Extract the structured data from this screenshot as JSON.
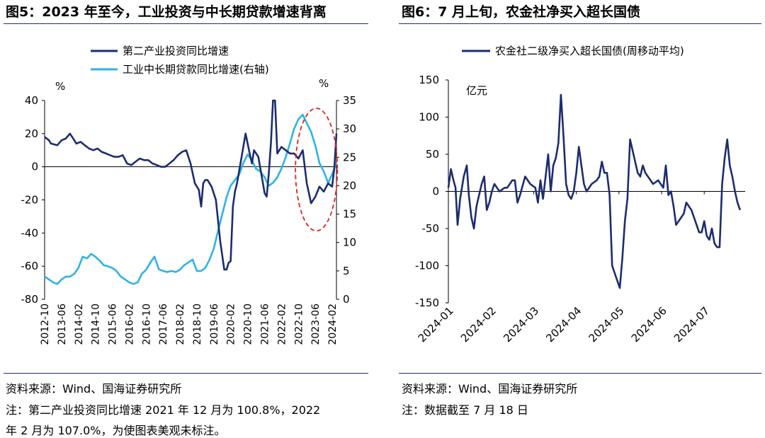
{
  "figure1": {
    "title": "图5：2023 年至今，工业投资与中长期贷款增速背离",
    "source": "资料来源：Wind、国海证券研究所",
    "note_line1": "注：第二产业投资同比增速 2021 年 12 月为 100.8%，2022",
    "note_line2": "年 2 月为 107.0%，为使图表美观未标注。"
  },
  "figure2": {
    "title": "图6：7 月上旬，农金社净买入超长国债",
    "source": "资料来源：Wind、国海证券研究所",
    "note_line1": "注：数据截至 7 月 18 日"
  },
  "colors": {
    "dark": "#1c2d6e",
    "light": "#2db3e8",
    "ellipse": "#e02020"
  },
  "chart_data": [
    {
      "type": "line",
      "unit_left": "%",
      "unit_right": "%",
      "ylim": [
        -80,
        40
      ],
      "y2lim": [
        0,
        35
      ],
      "yticks": [
        "40",
        "20",
        "0",
        "-20",
        "-40",
        "-60",
        "-80"
      ],
      "y2ticks": [
        "35",
        "30",
        "25",
        "20",
        "15",
        "10",
        "5",
        "0"
      ],
      "xlim": [
        2012.75,
        2024.25
      ],
      "xtick_labels": [
        "2012-10",
        "2013-06",
        "2014-02",
        "2014-10",
        "2015-06",
        "2016-02",
        "2016-10",
        "2017-06",
        "2018-02",
        "2018-10",
        "2019-06",
        "2020-02",
        "2020-10",
        "2021-06",
        "2022-02",
        "2022-10",
        "2023-06",
        "2024-02"
      ],
      "annotation": "dashed red ellipse highlighting 2022-10 to 2024-02",
      "series": [
        {
          "name": "第二产业投资同比增速",
          "axis": "left",
          "x": [
            2012.75,
            2012.92,
            2013.0,
            2013.25,
            2013.42,
            2013.58,
            2013.75,
            2013.92,
            2014.0,
            2014.17,
            2014.33,
            2014.5,
            2014.67,
            2014.83,
            2015.0,
            2015.17,
            2015.33,
            2015.5,
            2015.67,
            2015.83,
            2016.0,
            2016.17,
            2016.33,
            2016.5,
            2016.67,
            2016.83,
            2017.0,
            2017.17,
            2017.33,
            2017.5,
            2017.67,
            2017.83,
            2018.0,
            2018.17,
            2018.33,
            2018.5,
            2018.67,
            2018.83,
            2018.92,
            2019.0,
            2019.08,
            2019.17,
            2019.33,
            2019.5,
            2019.67,
            2019.83,
            2019.92,
            2020.0,
            2020.08,
            2020.17,
            2020.25,
            2020.33,
            2020.5,
            2020.67,
            2020.83,
            2020.92,
            2021.0,
            2021.17,
            2021.33,
            2021.42,
            2021.5,
            2021.58,
            2021.67,
            2021.75,
            2021.83,
            2021.92,
            2022.08,
            2022.25,
            2022.42,
            2022.58,
            2022.75,
            2022.92,
            2023.08,
            2023.25,
            2023.42,
            2023.58,
            2023.75,
            2023.92,
            2024.08,
            2024.17,
            2024.25
          ],
          "values": [
            18,
            16,
            14,
            13,
            16,
            17,
            20,
            16,
            14,
            15,
            13,
            11,
            10,
            11,
            9,
            8,
            7,
            6,
            6,
            7,
            2,
            1,
            3,
            5,
            4,
            4,
            2,
            1,
            0,
            0,
            2,
            4,
            7,
            9,
            10,
            2,
            -10,
            -14,
            -24,
            -10,
            -8,
            -8,
            -12,
            -20,
            -45,
            -62,
            -62,
            -58,
            -57,
            -24,
            -15,
            -10,
            5,
            20,
            8,
            2,
            10,
            6,
            -8,
            -16,
            -18,
            -5,
            15,
            40,
            40,
            8,
            12,
            10,
            8,
            8,
            5,
            10,
            -10,
            -22,
            -18,
            -12,
            -15,
            -10,
            -12,
            0,
            20
          ]
        },
        {
          "name": "工业中长期贷款同比增速(右轴)",
          "axis": "right",
          "x": [
            2012.75,
            2012.92,
            2013.08,
            2013.25,
            2013.42,
            2013.58,
            2013.75,
            2013.92,
            2014.08,
            2014.25,
            2014.42,
            2014.58,
            2014.75,
            2014.92,
            2015.08,
            2015.25,
            2015.42,
            2015.58,
            2015.75,
            2015.92,
            2016.08,
            2016.25,
            2016.42,
            2016.58,
            2016.75,
            2016.92,
            2017.08,
            2017.25,
            2017.42,
            2017.58,
            2017.75,
            2017.92,
            2018.08,
            2018.25,
            2018.42,
            2018.58,
            2018.75,
            2018.92,
            2019.08,
            2019.25,
            2019.42,
            2019.58,
            2019.75,
            2019.92,
            2020.08,
            2020.25,
            2020.42,
            2020.58,
            2020.75,
            2020.92,
            2021.08,
            2021.25,
            2021.42,
            2021.58,
            2021.75,
            2021.92,
            2022.08,
            2022.25,
            2022.42,
            2022.58,
            2022.75,
            2022.92,
            2023.08,
            2023.25,
            2023.42,
            2023.58,
            2023.75,
            2023.92,
            2024.08,
            2024.25
          ],
          "values": [
            4.0,
            3.5,
            3.0,
            2.7,
            3.5,
            4.0,
            4.0,
            4.5,
            5.5,
            7.5,
            7.2,
            8.0,
            7.5,
            6.8,
            6.0,
            5.8,
            5.5,
            5.0,
            4.0,
            3.5,
            3.0,
            2.7,
            3.0,
            4.5,
            5.2,
            6.5,
            7.5,
            5.3,
            5.0,
            4.8,
            5.0,
            4.8,
            5.2,
            6.0,
            6.5,
            7.0,
            5.0,
            5.0,
            5.5,
            7.0,
            9.0,
            12.0,
            15.0,
            18.0,
            20.0,
            21.0,
            22.0,
            24.0,
            25.5,
            24.5,
            23.0,
            22.5,
            21.5,
            20.0,
            20.5,
            21.5,
            23.0,
            25.0,
            27.5,
            30.0,
            31.7,
            32.5,
            31.0,
            29.5,
            27.0,
            24.0,
            22.5,
            20.5,
            22.0,
            24.0
          ]
        }
      ]
    },
    {
      "type": "line",
      "unit": "亿元",
      "ylim": [
        -150,
        150
      ],
      "yticks": [
        "150",
        "100",
        "50",
        "0",
        "-50",
        "-100",
        "-150"
      ],
      "xlim": [
        2024.0,
        2024.58
      ],
      "xtick_labels": [
        "2024-01",
        "2024-02",
        "2024-03",
        "2024-04",
        "2024-05",
        "2024-06",
        "2024-07"
      ],
      "series": [
        {
          "name": "农金社二级净买入超长国债(周移动平均)",
          "x": [
            2024.0,
            2024.005,
            2024.01,
            2024.014,
            2024.018,
            2024.023,
            2024.03,
            2024.036,
            2024.04,
            2024.045,
            2024.05,
            2024.055,
            2024.06,
            2024.065,
            2024.07,
            2024.075,
            2024.08,
            2024.085,
            2024.09,
            2024.095,
            2024.1,
            2024.11,
            2024.115,
            2024.12,
            2024.125,
            2024.13,
            2024.135,
            2024.14,
            2024.15,
            2024.16,
            2024.17,
            2024.175,
            2024.18,
            2024.185,
            2024.19,
            2024.195,
            2024.2,
            2024.205,
            2024.21,
            2024.215,
            2024.22,
            2024.225,
            2024.23,
            2024.235,
            2024.24,
            2024.245,
            2024.25,
            2024.255,
            2024.26,
            2024.265,
            2024.27,
            2024.28,
            2024.29,
            2024.295,
            2024.3,
            2024.305,
            2024.31,
            2024.315,
            2024.32,
            2024.33,
            2024.335,
            2024.34,
            2024.345,
            2024.35,
            2024.355,
            2024.36,
            2024.365,
            2024.37,
            2024.375,
            2024.38,
            2024.385,
            2024.39,
            2024.4,
            2024.41,
            2024.42,
            2024.425,
            2024.43,
            2024.435,
            2024.44,
            2024.445,
            2024.45,
            2024.455,
            2024.46,
            2024.465,
            2024.47,
            2024.475,
            2024.48,
            2024.485,
            2024.49,
            2024.495,
            2024.5,
            2024.505,
            2024.51,
            2024.515,
            2024.52,
            2024.525,
            2024.53,
            2024.535,
            2024.54,
            2024.545,
            2024.55,
            2024.555,
            2024.56,
            2024.565,
            2024.57
          ],
          "values": [
            5,
            30,
            15,
            5,
            -45,
            -10,
            20,
            35,
            -5,
            -35,
            -50,
            -20,
            -5,
            10,
            20,
            -25,
            -15,
            0,
            10,
            5,
            0,
            5,
            5,
            10,
            15,
            15,
            -15,
            -5,
            20,
            10,
            5,
            -15,
            15,
            -10,
            20,
            50,
            0,
            35,
            45,
            65,
            130,
            75,
            10,
            -5,
            -10,
            0,
            25,
            60,
            35,
            10,
            0,
            10,
            15,
            20,
            40,
            25,
            25,
            -5,
            -100,
            -120,
            -130,
            -90,
            -40,
            -10,
            70,
            55,
            40,
            25,
            20,
            35,
            25,
            20,
            10,
            15,
            5,
            35,
            -5,
            0,
            -20,
            -45,
            -40,
            -35,
            -30,
            -15,
            -20,
            -25,
            -35,
            -45,
            -55,
            -55,
            -40,
            -60,
            -65,
            -50,
            -70,
            -75,
            -75,
            10,
            45,
            70,
            35,
            20,
            0,
            -15,
            -25
          ]
        }
      ]
    }
  ]
}
